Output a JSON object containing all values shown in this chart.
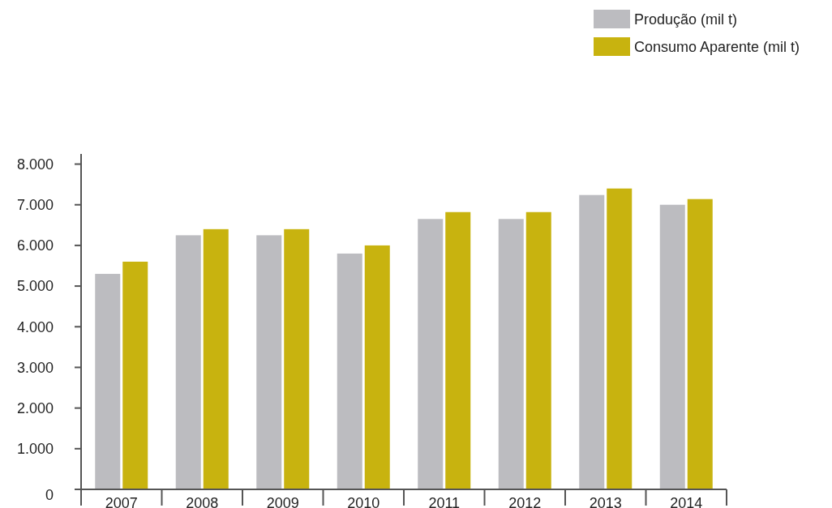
{
  "chart_data": {
    "type": "bar",
    "categories": [
      "2007",
      "2008",
      "2009",
      "2010",
      "2011",
      "2012",
      "2013",
      "2014"
    ],
    "series": [
      {
        "name": "Produção (mil t)",
        "color": "#bcbcc0",
        "values": [
          5300,
          6250,
          6250,
          5800,
          6650,
          6650,
          7240,
          7000
        ]
      },
      {
        "name": "Consumo Aparente (mil t)",
        "color": "#c8b30f",
        "values": [
          5600,
          6400,
          6400,
          6000,
          6820,
          6820,
          7400,
          7140
        ]
      }
    ],
    "ylim": [
      0,
      8250
    ],
    "yticks": [
      {
        "value": 0,
        "label": "0"
      },
      {
        "value": 1000,
        "label": "1.000"
      },
      {
        "value": 2000,
        "label": "2.000"
      },
      {
        "value": 3000,
        "label": "3.000"
      },
      {
        "value": 4000,
        "label": "4.000"
      },
      {
        "value": 5000,
        "label": "5.000"
      },
      {
        "value": 6000,
        "label": "6.000"
      },
      {
        "value": 7000,
        "label": "7.000"
      },
      {
        "value": 8000,
        "label": "8.000"
      }
    ],
    "grid": false,
    "legend": "top right"
  }
}
